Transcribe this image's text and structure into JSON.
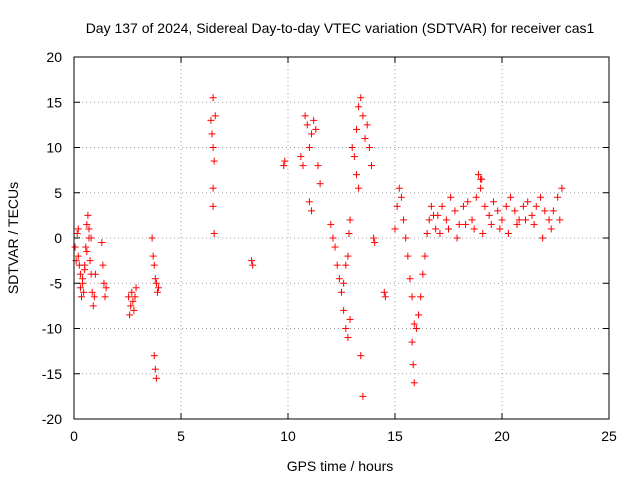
{
  "chart_data": {
    "type": "scatter",
    "title": "Day 137 of 2024, Sidereal Day-to-day VTEC variation (SDTVAR) for receiver cas1",
    "xlabel": "GPS time / hours",
    "ylabel": "SDTVAR / TECUs",
    "xlim": [
      0,
      25
    ],
    "ylim": [
      -20,
      20
    ],
    "xticks": [
      0,
      5,
      10,
      15,
      20,
      25
    ],
    "yticks": [
      -20,
      -15,
      -10,
      -5,
      0,
      5,
      10,
      15,
      20
    ],
    "grid": true,
    "marker": "+",
    "series": [
      {
        "name": "SDTVAR",
        "color": "#ff0000",
        "x": [
          0.05,
          0.1,
          0.15,
          0.2,
          0.25,
          0.3,
          0.35,
          0.4,
          0.45,
          0.5,
          0.55,
          0.6,
          0.65,
          0.7,
          0.75,
          0.8,
          0.85,
          0.9,
          0.95,
          1.0,
          0.2,
          0.3,
          0.4,
          0.5,
          0.6,
          0.7,
          0.8,
          1.3,
          1.35,
          1.4,
          1.45,
          1.5,
          2.55,
          2.6,
          2.65,
          2.7,
          2.75,
          2.8,
          2.85,
          2.9,
          3.65,
          3.7,
          3.75,
          3.8,
          3.85,
          3.9,
          3.95,
          3.75,
          3.8,
          3.85,
          6.4,
          6.45,
          6.5,
          6.55,
          6.6,
          6.5,
          6.5,
          6.5,
          6.55,
          8.3,
          8.35,
          9.8,
          9.85,
          10.6,
          10.7,
          10.8,
          10.9,
          11.0,
          11.1,
          11.2,
          11.3,
          11.4,
          11.5,
          11.0,
          11.1,
          12.0,
          12.1,
          12.2,
          12.3,
          12.4,
          12.5,
          12.6,
          12.7,
          12.8,
          12.9,
          12.6,
          12.7,
          12.8,
          12.85,
          12.9,
          13.0,
          13.1,
          13.2,
          13.3,
          13.4,
          13.5,
          13.6,
          13.7,
          13.8,
          13.9,
          13.2,
          13.3,
          13.4,
          13.5,
          14.0,
          14.05,
          14.5,
          14.55,
          15.0,
          15.1,
          15.2,
          15.3,
          15.4,
          15.5,
          15.6,
          15.7,
          15.8,
          15.9,
          15.8,
          15.85,
          15.9,
          16.0,
          16.1,
          16.2,
          16.3,
          16.4,
          16.5,
          16.6,
          16.7,
          16.8,
          16.9,
          17.0,
          17.2,
          17.4,
          17.6,
          17.8,
          18.0,
          18.2,
          18.4,
          18.6,
          18.8,
          19.0,
          19.2,
          19.4,
          19.6,
          19.8,
          20.0,
          20.2,
          20.4,
          20.6,
          20.8,
          21.0,
          21.2,
          21.4,
          21.6,
          21.8,
          22.0,
          22.2,
          22.4,
          22.6,
          22.8,
          17.1,
          17.5,
          17.9,
          18.3,
          18.7,
          19.1,
          19.5,
          19.9,
          20.3,
          20.7,
          21.1,
          21.5,
          21.9,
          22.3,
          22.7,
          18.9,
          19.0,
          19.05
        ],
        "y": [
          -1.0,
          -2.5,
          0.5,
          1.0,
          -3.0,
          -5.5,
          -6.5,
          -4.5,
          -6.0,
          -3.0,
          -1.0,
          1.5,
          2.5,
          0.0,
          -2.5,
          -4.0,
          -6.0,
          -7.5,
          -6.5,
          -4.0,
          -2.0,
          -4.0,
          -5.0,
          -3.5,
          -1.5,
          1.0,
          0.0,
          -0.5,
          -3.0,
          -5.0,
          -6.5,
          -5.5,
          -6.5,
          -8.5,
          -7.5,
          -6.0,
          -7.0,
          -8.0,
          -6.5,
          -5.5,
          0.0,
          -2.0,
          -3.0,
          -4.5,
          -5.0,
          -6.0,
          -5.5,
          -13.0,
          -14.5,
          -15.5,
          13.0,
          11.5,
          10.0,
          8.5,
          13.5,
          15.5,
          5.5,
          3.5,
          0.5,
          -2.5,
          -3.0,
          8.0,
          8.5,
          9.0,
          8.0,
          13.5,
          12.5,
          10.0,
          11.5,
          13.0,
          12.0,
          8.0,
          6.0,
          4.0,
          3.0,
          1.5,
          0.0,
          -1.0,
          -3.0,
          -4.5,
          -6.0,
          -8.0,
          -10.0,
          -11.0,
          -9.0,
          -5.0,
          -3.0,
          -2.0,
          0.5,
          2.0,
          10.0,
          9.0,
          12.0,
          14.5,
          15.5,
          13.5,
          11.0,
          12.5,
          10.0,
          8.0,
          7.0,
          5.5,
          -13.0,
          -17.5,
          0.0,
          -0.5,
          -6.0,
          -6.5,
          1.0,
          3.5,
          5.5,
          4.5,
          2.0,
          0.0,
          -2.0,
          -4.5,
          -6.5,
          -9.5,
          -11.5,
          -14.0,
          -16.0,
          -10.0,
          -8.5,
          -6.5,
          -4.0,
          -2.0,
          0.5,
          2.0,
          3.5,
          2.5,
          1.0,
          2.5,
          3.5,
          2.0,
          4.5,
          3.0,
          1.5,
          3.5,
          4.0,
          2.0,
          4.5,
          6.5,
          3.5,
          2.5,
          4.0,
          3.0,
          2.0,
          3.5,
          4.5,
          3.0,
          2.0,
          3.5,
          4.0,
          2.5,
          3.5,
          4.5,
          3.0,
          2.0,
          3.0,
          4.5,
          5.5,
          0.5,
          1.0,
          0.0,
          1.5,
          1.0,
          0.5,
          1.5,
          1.0,
          0.5,
          1.5,
          2.0,
          1.5,
          0.0,
          1.0,
          2.0,
          7.0,
          5.5,
          6.5
        ]
      }
    ]
  }
}
